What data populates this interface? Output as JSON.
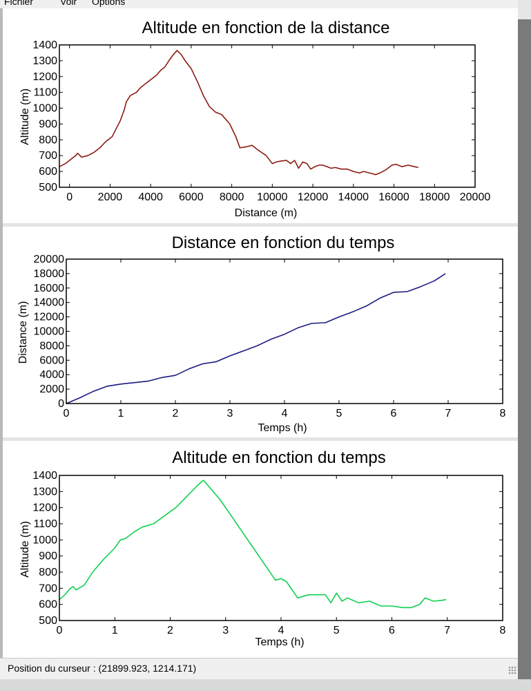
{
  "menu": {
    "items": [
      "Fichier",
      "Voir",
      "Options"
    ]
  },
  "status_bar": {
    "text": "Position du curseur : (21899.923, 1214.171)"
  },
  "colors": {
    "series_1": "#8b1a10",
    "series_2": "#1a1a80",
    "series_3": "#10d050"
  },
  "chart_data": [
    {
      "type": "line",
      "title": "Altitude en fonction de la distance",
      "xlabel": "Distance (m)",
      "ylabel": "Altitude (m)",
      "xlim": [
        -500,
        20000
      ],
      "ylim": [
        500,
        1400
      ],
      "xticks": [
        0,
        2000,
        4000,
        6000,
        8000,
        10000,
        12000,
        14000,
        16000,
        18000,
        20000
      ],
      "yticks": [
        500,
        600,
        700,
        800,
        900,
        1000,
        1100,
        1200,
        1300,
        1400
      ],
      "grid": false,
      "series": [
        {
          "color": "#8b1a10",
          "x": [
            -500,
            -200,
            100,
            300,
            400,
            600,
            900,
            1200,
            1500,
            1800,
            2100,
            2300,
            2500,
            2700,
            2800,
            3000,
            3300,
            3500,
            3700,
            3900,
            4100,
            4300,
            4500,
            4700,
            4900,
            5100,
            5300,
            5500,
            5700,
            6000,
            6300,
            6600,
            6900,
            7200,
            7500,
            7900,
            8200,
            8400,
            8700,
            9000,
            9300,
            9700,
            10000,
            10200,
            10400,
            10700,
            10900,
            11100,
            11300,
            11500,
            11700,
            11900,
            12100,
            12300,
            12500,
            12700,
            12900,
            13100,
            13400,
            13700,
            14000,
            14300,
            14500,
            14800,
            15100,
            15300,
            15600,
            15900,
            16100,
            16400,
            16700,
            17000,
            17200
          ],
          "y": [
            630,
            650,
            680,
            700,
            715,
            690,
            700,
            720,
            750,
            790,
            820,
            870,
            920,
            990,
            1040,
            1080,
            1100,
            1130,
            1150,
            1170,
            1190,
            1210,
            1240,
            1260,
            1300,
            1335,
            1365,
            1340,
            1300,
            1250,
            1170,
            1080,
            1010,
            975,
            960,
            900,
            820,
            750,
            755,
            765,
            735,
            700,
            650,
            660,
            665,
            670,
            650,
            670,
            620,
            660,
            650,
            615,
            630,
            640,
            640,
            630,
            620,
            625,
            615,
            615,
            600,
            590,
            600,
            590,
            580,
            590,
            610,
            640,
            645,
            630,
            640,
            630,
            625
          ]
        }
      ]
    },
    {
      "type": "line",
      "title": "Distance en fonction du temps",
      "xlabel": "Temps (h)",
      "ylabel": "Distance (m)",
      "xlim": [
        0,
        8
      ],
      "ylim": [
        0,
        20000
      ],
      "xticks": [
        0,
        1,
        2,
        3,
        4,
        5,
        6,
        7,
        8
      ],
      "yticks": [
        0,
        2000,
        4000,
        6000,
        8000,
        10000,
        12000,
        14000,
        16000,
        18000,
        20000
      ],
      "grid": false,
      "series": [
        {
          "color": "#1a1a80",
          "x": [
            0,
            0.25,
            0.5,
            0.75,
            1.0,
            1.25,
            1.5,
            1.75,
            2.0,
            2.25,
            2.5,
            2.75,
            3.0,
            3.25,
            3.5,
            3.75,
            4.0,
            4.25,
            4.5,
            4.75,
            5.0,
            5.25,
            5.5,
            5.75,
            6.0,
            6.25,
            6.5,
            6.75,
            6.95
          ],
          "y": [
            0,
            800,
            1700,
            2400,
            2700,
            2900,
            3100,
            3600,
            3900,
            4800,
            5500,
            5800,
            6600,
            7300,
            8000,
            8900,
            9600,
            10500,
            11100,
            11200,
            12000,
            12700,
            13500,
            14600,
            15400,
            15500,
            16200,
            17000,
            18000
          ]
        }
      ]
    },
    {
      "type": "line",
      "title": "Altitude en fonction du temps",
      "xlabel": "Temps (h)",
      "ylabel": "Altitude (m)",
      "xlim": [
        0,
        8
      ],
      "ylim": [
        500,
        1400
      ],
      "xticks": [
        0,
        1,
        2,
        3,
        4,
        5,
        6,
        7,
        8
      ],
      "yticks": [
        500,
        600,
        700,
        800,
        900,
        1000,
        1100,
        1200,
        1300,
        1400
      ],
      "grid": false,
      "series": [
        {
          "color": "#10d050",
          "x": [
            0,
            0.1,
            0.2,
            0.25,
            0.3,
            0.45,
            0.6,
            0.8,
            1.0,
            1.1,
            1.2,
            1.35,
            1.5,
            1.7,
            1.9,
            2.1,
            2.3,
            2.5,
            2.6,
            2.7,
            2.9,
            3.1,
            3.3,
            3.5,
            3.7,
            3.9,
            4.0,
            4.1,
            4.3,
            4.5,
            4.7,
            4.8,
            4.9,
            5.0,
            5.1,
            5.2,
            5.4,
            5.6,
            5.8,
            6.0,
            6.2,
            6.35,
            6.5,
            6.6,
            6.75,
            6.9,
            6.98
          ],
          "y": [
            630,
            660,
            700,
            710,
            690,
            720,
            800,
            880,
            950,
            1000,
            1010,
            1050,
            1080,
            1100,
            1150,
            1200,
            1270,
            1340,
            1370,
            1330,
            1250,
            1150,
            1050,
            950,
            850,
            750,
            760,
            740,
            640,
            660,
            660,
            660,
            610,
            670,
            620,
            640,
            610,
            620,
            590,
            590,
            580,
            580,
            600,
            640,
            620,
            625,
            630
          ]
        }
      ]
    }
  ]
}
